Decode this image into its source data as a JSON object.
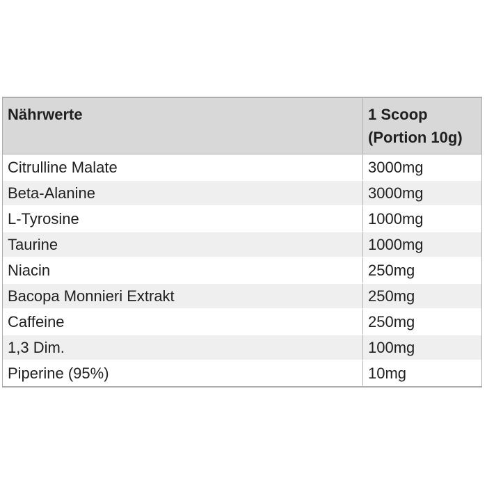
{
  "table": {
    "title_column": "Nährwerte",
    "header": {
      "nutrients_label": "Nährwerte",
      "serving_line1": "1 Scoop",
      "serving_line2": "(Portion 10g)",
      "serving_full": "1 Scoop (Portion 10g)"
    },
    "rows": [
      {
        "name": "Citrulline Malate",
        "amount": "3000mg"
      },
      {
        "name": "Beta-Alanine",
        "amount": "3000mg"
      },
      {
        "name": "L-Tyrosine",
        "amount": "1000mg"
      },
      {
        "name": "Taurine",
        "amount": "1000mg"
      },
      {
        "name": "Niacin",
        "amount": "250mg"
      },
      {
        "name": "Bacopa Monnieri Extrakt",
        "amount": "250mg"
      },
      {
        "name": "Caffeine",
        "amount": "250mg"
      },
      {
        "name": "1,3 Dim.",
        "amount": "100mg"
      },
      {
        "name": "Piperine (95%)",
        "amount": "10mg"
      }
    ]
  },
  "colors": {
    "page_bg": "#ffffff",
    "header_bg": "#d8d8d8",
    "alt_row_bg": "#efefef",
    "border": "#adadad",
    "divider": "#b0b0b0",
    "text": "#1f1f1f"
  },
  "chart_data": {
    "type": "table",
    "title": "Nährwerte",
    "columns": [
      "Nährwerte",
      "1 Scoop (Portion 10g)"
    ],
    "rows": [
      [
        "Citrulline Malate",
        "3000mg"
      ],
      [
        "Beta-Alanine",
        "3000mg"
      ],
      [
        "L-Tyrosine",
        "1000mg"
      ],
      [
        "Taurine",
        "1000mg"
      ],
      [
        "Niacin",
        "250mg"
      ],
      [
        "Bacopa Monnieri Extrakt",
        "250mg"
      ],
      [
        "Caffeine",
        "250mg"
      ],
      [
        "1,3 Dim.",
        "100mg"
      ],
      [
        "Piperine (95%)",
        "10mg"
      ]
    ],
    "layout": {
      "header_background": "#d8d8d8",
      "alternating_row_background": "#efefef",
      "grid": "outer border + single column divider",
      "units": "mg per 10g scoop"
    }
  }
}
